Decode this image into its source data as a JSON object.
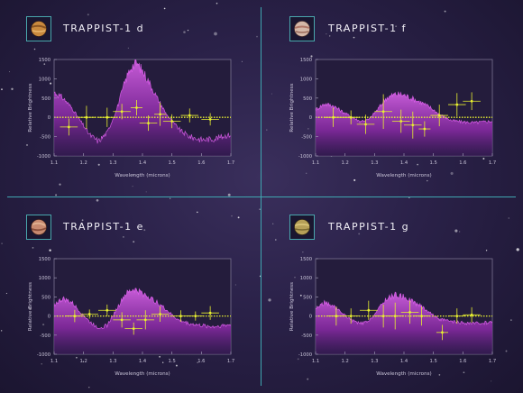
{
  "colors": {
    "divider": "#3fa6b0",
    "spectrum_fill": "#a040b8",
    "spectrum_line": "#e060f0",
    "data_points": "#e8f030",
    "axis_text": "#c9c4d8"
  },
  "panels": [
    {
      "title": "TRAPPIST-1 d",
      "planet_icon": "planet-d-icon"
    },
    {
      "title": "TRAPPIST-1 f",
      "planet_icon": "planet-f-icon"
    },
    {
      "title": "TRAPPIST-1 e",
      "planet_icon": "planet-e-icon"
    },
    {
      "title": "TRAPPIST-1 g",
      "planet_icon": "planet-g-icon"
    }
  ],
  "chart_data": [
    {
      "type": "scatter",
      "title": "TRAPPIST-1 d",
      "xlabel": "Wavelength (microns)",
      "ylabel": "Relative Brightness",
      "xlim": [
        1.1,
        1.7
      ],
      "ylim": [
        -1000,
        1500
      ],
      "xticks": [
        "1.1",
        "1.2",
        "1.3",
        "1.4",
        "1.5",
        "1.6",
        "1.7"
      ],
      "yticks": [
        "1500",
        "1000",
        "500",
        "0",
        "-500",
        "-1000"
      ],
      "model_spectrum": {
        "x": [
          1.1,
          1.13,
          1.16,
          1.19,
          1.22,
          1.25,
          1.28,
          1.31,
          1.34,
          1.36,
          1.38,
          1.4,
          1.42,
          1.45,
          1.48,
          1.5,
          1.53,
          1.56,
          1.6,
          1.64,
          1.68,
          1.7
        ],
        "y": [
          650,
          500,
          250,
          -100,
          -450,
          -620,
          -400,
          150,
          900,
          1300,
          1400,
          1200,
          950,
          500,
          100,
          -100,
          -350,
          -500,
          -580,
          -560,
          -480,
          -450
        ]
      },
      "points": [
        {
          "x": 1.15,
          "y": -250,
          "xerr": 0.03,
          "yerr": 220
        },
        {
          "x": 1.21,
          "y": 0,
          "xerr": 0.03,
          "yerr": 300
        },
        {
          "x": 1.28,
          "y": 0,
          "xerr": 0.03,
          "yerr": 250
        },
        {
          "x": 1.33,
          "y": 150,
          "xerr": 0.03,
          "yerr": 200
        },
        {
          "x": 1.38,
          "y": 250,
          "xerr": 0.02,
          "yerr": 200
        },
        {
          "x": 1.42,
          "y": -150,
          "xerr": 0.03,
          "yerr": 200
        },
        {
          "x": 1.46,
          "y": 80,
          "xerr": 0.02,
          "yerr": 300
        },
        {
          "x": 1.5,
          "y": -100,
          "xerr": 0.03,
          "yerr": 180
        },
        {
          "x": 1.56,
          "y": 50,
          "xerr": 0.03,
          "yerr": 180
        },
        {
          "x": 1.63,
          "y": -50,
          "xerr": 0.03,
          "yerr": 160
        }
      ]
    },
    {
      "type": "scatter",
      "title": "TRAPPIST-1 f",
      "xlabel": "Wavelength (microns)",
      "ylabel": "Relative Brightness",
      "xlim": [
        1.1,
        1.7
      ],
      "ylim": [
        -1000,
        1500
      ],
      "xticks": [
        "1.1",
        "1.2",
        "1.3",
        "1.4",
        "1.5",
        "1.6",
        "1.7"
      ],
      "yticks": [
        "1500",
        "1000",
        "500",
        "0",
        "-500",
        "-1000"
      ],
      "model_spectrum": {
        "x": [
          1.1,
          1.13,
          1.16,
          1.19,
          1.22,
          1.25,
          1.28,
          1.31,
          1.34,
          1.37,
          1.4,
          1.43,
          1.46,
          1.49,
          1.52,
          1.56,
          1.6,
          1.64,
          1.68,
          1.7
        ],
        "y": [
          200,
          350,
          300,
          150,
          20,
          -100,
          -60,
          200,
          500,
          600,
          580,
          480,
          380,
          250,
          80,
          -80,
          -120,
          -140,
          -110,
          -100
        ]
      },
      "points": [
        {
          "x": 1.16,
          "y": 0,
          "xerr": 0.03,
          "yerr": 250
        },
        {
          "x": 1.22,
          "y": 0,
          "xerr": 0.03,
          "yerr": 180
        },
        {
          "x": 1.27,
          "y": -180,
          "xerr": 0.03,
          "yerr": 250
        },
        {
          "x": 1.33,
          "y": 150,
          "xerr": 0.03,
          "yerr": 450
        },
        {
          "x": 1.39,
          "y": -100,
          "xerr": 0.03,
          "yerr": 300
        },
        {
          "x": 1.43,
          "y": -200,
          "xerr": 0.03,
          "yerr": 350
        },
        {
          "x": 1.47,
          "y": -300,
          "xerr": 0.02,
          "yerr": 200
        },
        {
          "x": 1.52,
          "y": 50,
          "xerr": 0.03,
          "yerr": 280
        },
        {
          "x": 1.58,
          "y": 330,
          "xerr": 0.03,
          "yerr": 300
        },
        {
          "x": 1.63,
          "y": 420,
          "xerr": 0.03,
          "yerr": 230
        }
      ]
    },
    {
      "type": "scatter",
      "title": "TRAPPIST-1 e",
      "xlabel": "Wavelength (microns)",
      "ylabel": "Relative Brightness",
      "xlim": [
        1.1,
        1.7
      ],
      "ylim": [
        -1000,
        1500
      ],
      "xticks": [
        "1.1",
        "1.2",
        "1.3",
        "1.4",
        "1.5",
        "1.6",
        "1.7"
      ],
      "yticks": [
        "1500",
        "1000",
        "500",
        "0",
        "-500",
        "-1000"
      ],
      "model_spectrum": {
        "x": [
          1.1,
          1.13,
          1.16,
          1.19,
          1.22,
          1.25,
          1.28,
          1.31,
          1.34,
          1.37,
          1.4,
          1.43,
          1.46,
          1.49,
          1.52,
          1.56,
          1.6,
          1.64,
          1.68,
          1.7
        ],
        "y": [
          300,
          450,
          350,
          100,
          -150,
          -300,
          -250,
          150,
          550,
          700,
          600,
          450,
          300,
          100,
          -100,
          -200,
          -250,
          -280,
          -240,
          -230
        ]
      },
      "points": [
        {
          "x": 1.17,
          "y": 0,
          "xerr": 0.03,
          "yerr": 160
        },
        {
          "x": 1.22,
          "y": 50,
          "xerr": 0.03,
          "yerr": 120
        },
        {
          "x": 1.28,
          "y": 150,
          "xerr": 0.03,
          "yerr": 150
        },
        {
          "x": 1.33,
          "y": -100,
          "xerr": 0.03,
          "yerr": 200
        },
        {
          "x": 1.37,
          "y": -330,
          "xerr": 0.03,
          "yerr": 160
        },
        {
          "x": 1.41,
          "y": -100,
          "xerr": 0.03,
          "yerr": 250
        },
        {
          "x": 1.46,
          "y": 50,
          "xerr": 0.03,
          "yerr": 200
        },
        {
          "x": 1.53,
          "y": 0,
          "xerr": 0.03,
          "yerr": 150
        },
        {
          "x": 1.58,
          "y": 0,
          "xerr": 0.03,
          "yerr": 120
        },
        {
          "x": 1.63,
          "y": 80,
          "xerr": 0.03,
          "yerr": 180
        }
      ]
    },
    {
      "type": "scatter",
      "title": "TRAPPIST-1 g",
      "xlabel": "Wavelength (microns)",
      "ylabel": "Relative Brightness",
      "xlim": [
        1.1,
        1.7
      ],
      "ylim": [
        -1000,
        1500
      ],
      "xticks": [
        "1.1",
        "1.2",
        "1.3",
        "1.4",
        "1.5",
        "1.6",
        "1.7"
      ],
      "yticks": [
        "1500",
        "1000",
        "500",
        "0",
        "-500",
        "-1000"
      ],
      "model_spectrum": {
        "x": [
          1.1,
          1.13,
          1.16,
          1.19,
          1.22,
          1.25,
          1.28,
          1.31,
          1.34,
          1.37,
          1.4,
          1.43,
          1.46,
          1.49,
          1.52,
          1.56,
          1.6,
          1.64,
          1.68,
          1.7
        ],
        "y": [
          200,
          350,
          250,
          80,
          -100,
          -200,
          -150,
          150,
          450,
          550,
          500,
          380,
          250,
          80,
          -80,
          -150,
          -180,
          -200,
          -170,
          -160
        ]
      },
      "points": [
        {
          "x": 1.17,
          "y": 0,
          "xerr": 0.03,
          "yerr": 250
        },
        {
          "x": 1.22,
          "y": 0,
          "xerr": 0.03,
          "yerr": 200
        },
        {
          "x": 1.28,
          "y": 150,
          "xerr": 0.03,
          "yerr": 250
        },
        {
          "x": 1.33,
          "y": 0,
          "xerr": 0.03,
          "yerr": 300
        },
        {
          "x": 1.37,
          "y": 0,
          "xerr": 0.03,
          "yerr": 350
        },
        {
          "x": 1.42,
          "y": 100,
          "xerr": 0.03,
          "yerr": 300
        },
        {
          "x": 1.46,
          "y": 0,
          "xerr": 0.03,
          "yerr": 250
        },
        {
          "x": 1.53,
          "y": -430,
          "xerr": 0.02,
          "yerr": 200
        },
        {
          "x": 1.58,
          "y": 0,
          "xerr": 0.03,
          "yerr": 200
        },
        {
          "x": 1.63,
          "y": 30,
          "xerr": 0.03,
          "yerr": 200
        }
      ]
    }
  ]
}
